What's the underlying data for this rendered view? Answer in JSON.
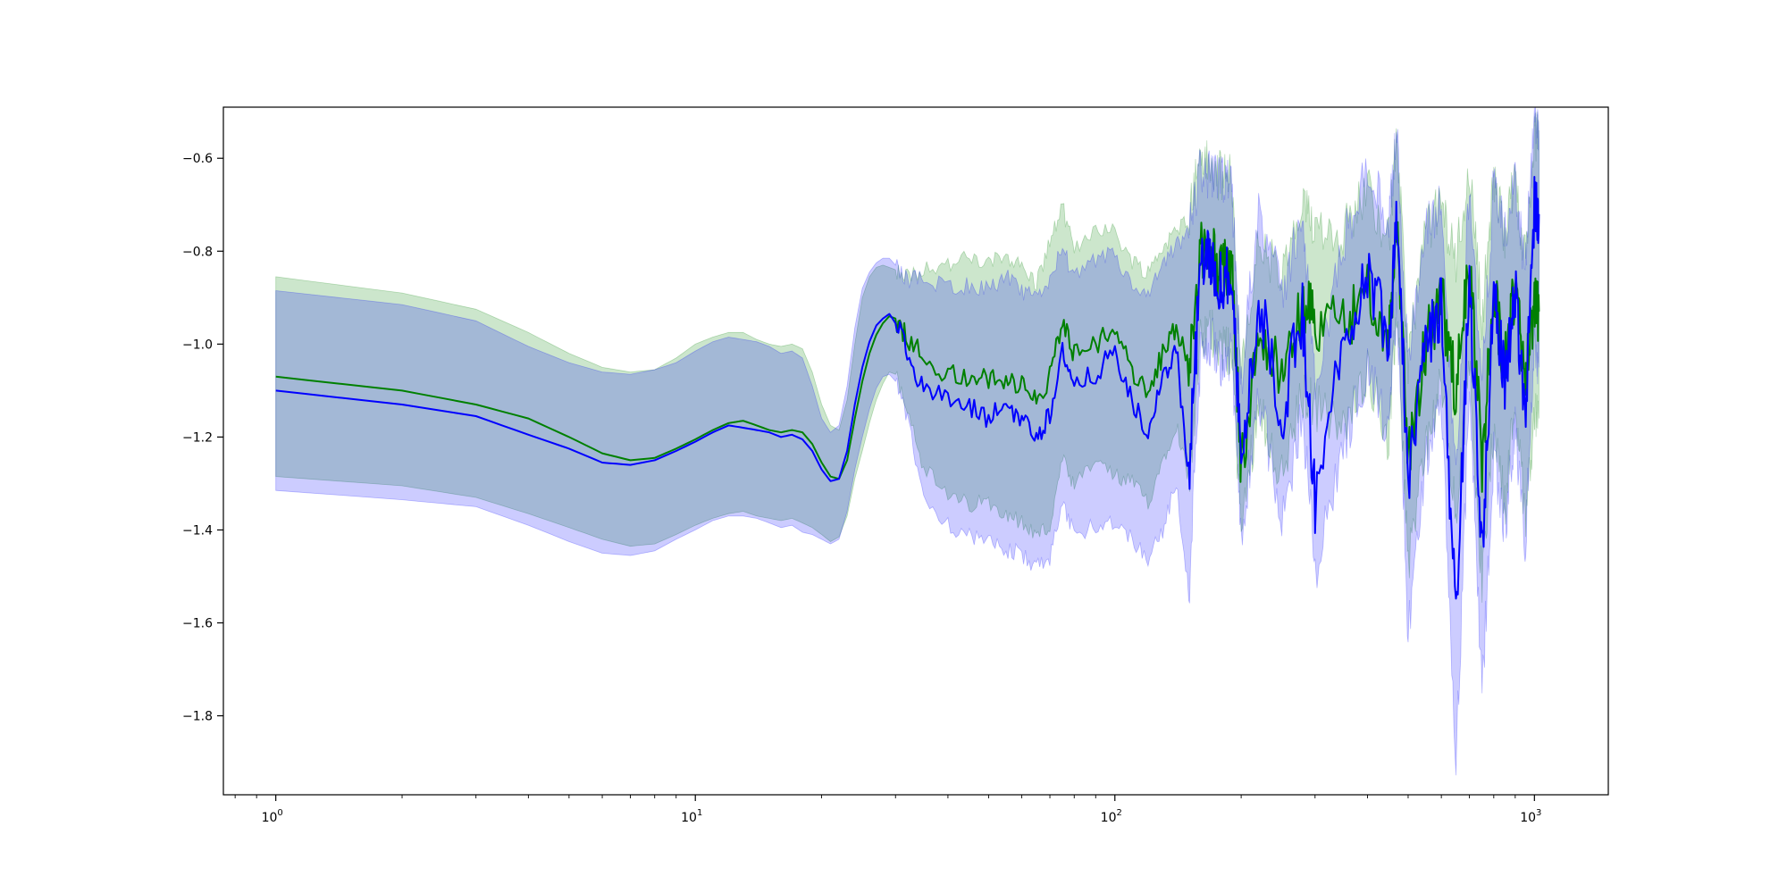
{
  "chart_data": {
    "type": "line",
    "title": "",
    "xlabel": "",
    "ylabel": "",
    "xscale": "log",
    "xlim": [
      0.75,
      1500
    ],
    "ylim": [
      -1.97,
      -0.49
    ],
    "grid": false,
    "x_ticks": [
      {
        "value": 1,
        "base": "10",
        "exp": "0"
      },
      {
        "value": 10,
        "base": "10",
        "exp": "1"
      },
      {
        "value": 100,
        "base": "10",
        "exp": "2"
      },
      {
        "value": 1000,
        "base": "10",
        "exp": "3"
      }
    ],
    "y_ticks": [
      {
        "value": -0.6,
        "label": "−0.6"
      },
      {
        "value": -0.8,
        "label": "−0.8"
      },
      {
        "value": -1.0,
        "label": "−1.0"
      },
      {
        "value": -1.2,
        "label": "−1.2"
      },
      {
        "value": -1.4,
        "label": "−1.4"
      },
      {
        "value": -1.6,
        "label": "−1.6"
      },
      {
        "value": -1.8,
        "label": "−1.8"
      }
    ],
    "series": [
      {
        "color": "#008000",
        "band_color": "#008000",
        "band_opacity": 0.2,
        "points": [
          [
            1,
            -1.07,
            -0.855,
            -1.285
          ],
          [
            2,
            -1.1,
            -0.89,
            -1.305
          ],
          [
            3,
            -1.13,
            -0.925,
            -1.33
          ],
          [
            4,
            -1.16,
            -0.975,
            -1.365
          ],
          [
            5,
            -1.2,
            -1.02,
            -1.395
          ],
          [
            6,
            -1.235,
            -1.05,
            -1.42
          ],
          [
            7,
            -1.25,
            -1.06,
            -1.435
          ],
          [
            8,
            -1.245,
            -1.055,
            -1.43
          ],
          [
            9,
            -1.225,
            -1.03,
            -1.41
          ],
          [
            10,
            -1.205,
            -1.0,
            -1.39
          ],
          [
            11,
            -1.185,
            -0.985,
            -1.375
          ],
          [
            12,
            -1.17,
            -0.975,
            -1.365
          ],
          [
            13,
            -1.165,
            -0.975,
            -1.36
          ],
          [
            14,
            -1.175,
            -0.99,
            -1.37
          ],
          [
            15,
            -1.185,
            -1.0,
            -1.375
          ],
          [
            16,
            -1.19,
            -1.005,
            -1.38
          ],
          [
            17,
            -1.185,
            -1.0,
            -1.375
          ],
          [
            18,
            -1.19,
            -1.01,
            -1.385
          ],
          [
            19,
            -1.215,
            -1.06,
            -1.395
          ],
          [
            20,
            -1.255,
            -1.13,
            -1.41
          ],
          [
            21,
            -1.285,
            -1.175,
            -1.425
          ],
          [
            22,
            -1.29,
            -1.185,
            -1.415
          ],
          [
            23,
            -1.25,
            -1.12,
            -1.37
          ],
          [
            24,
            -1.16,
            -1.0,
            -1.29
          ],
          [
            25,
            -1.08,
            -0.9,
            -1.23
          ],
          [
            26,
            -1.02,
            -0.855,
            -1.17
          ],
          [
            27,
            -0.98,
            -0.835,
            -1.12
          ],
          [
            28,
            -0.955,
            -0.83,
            -1.085
          ],
          [
            29,
            -0.94,
            -0.835,
            -1.06
          ],
          [
            30,
            -0.945,
            -0.84,
            -1.065
          ],
          [
            32,
            -0.985,
            -0.855,
            -1.13
          ],
          [
            35,
            -1.03,
            -0.835,
            -1.265
          ],
          [
            40,
            -1.065,
            -0.83,
            -1.33
          ],
          [
            45,
            -1.07,
            -0.815,
            -1.345
          ],
          [
            50,
            -1.08,
            -0.83,
            -1.34
          ],
          [
            55,
            -1.07,
            -0.805,
            -1.36
          ],
          [
            60,
            -1.09,
            -0.835,
            -1.385
          ],
          [
            65,
            -1.115,
            -0.87,
            -1.41
          ],
          [
            70,
            -1.07,
            -0.78,
            -1.395
          ],
          [
            75,
            -0.95,
            -0.705,
            -1.25
          ],
          [
            80,
            -1.02,
            -0.8,
            -1.31
          ],
          [
            90,
            -1.0,
            -0.745,
            -1.25
          ],
          [
            100,
            -0.97,
            -0.76,
            -1.285
          ],
          [
            110,
            -1.06,
            -0.82,
            -1.3
          ],
          [
            120,
            -1.11,
            -0.845,
            -1.34
          ],
          [
            130,
            -1.02,
            -0.79,
            -1.25
          ],
          [
            140,
            -0.96,
            -0.76,
            -1.17
          ],
          [
            150,
            -1.04,
            -0.72,
            -1.29
          ],
          [
            160,
            -0.8,
            -0.59,
            -1.0
          ],
          [
            170,
            -0.81,
            -0.63,
            -0.97
          ],
          [
            180,
            -0.85,
            -0.64,
            -1.01
          ],
          [
            190,
            -0.83,
            -0.64,
            -1.02
          ],
          [
            200,
            -1.26,
            -1.08,
            -1.4
          ],
          [
            220,
            -0.96,
            -0.78,
            -1.12
          ],
          [
            250,
            -1.08,
            -0.86,
            -1.29
          ],
          [
            280,
            -0.92,
            -0.71,
            -1.11
          ],
          [
            300,
            -0.95,
            -0.74,
            -1.13
          ],
          [
            350,
            -0.97,
            -0.76,
            -1.19
          ],
          [
            400,
            -0.86,
            -0.66,
            -1.05
          ],
          [
            450,
            -1.0,
            -0.78,
            -1.21
          ],
          [
            470,
            -0.72,
            -0.54,
            -0.92
          ],
          [
            500,
            -1.24,
            -1.03,
            -1.47
          ],
          [
            550,
            -1.0,
            -0.76,
            -1.22
          ],
          [
            600,
            -0.9,
            -0.7,
            -1.09
          ],
          [
            650,
            -1.1,
            -0.82,
            -1.38
          ],
          [
            700,
            -0.83,
            -0.62,
            -1.04
          ],
          [
            750,
            -1.25,
            -0.94,
            -1.52
          ],
          [
            800,
            -0.88,
            -0.65,
            -1.17
          ],
          [
            850,
            -1.05,
            -0.76,
            -1.35
          ],
          [
            900,
            -0.87,
            -0.64,
            -1.11
          ],
          [
            950,
            -1.1,
            -0.82,
            -1.38
          ],
          [
            1000,
            -0.9,
            -0.56,
            -1.15
          ],
          [
            1025,
            -0.93,
            -0.54,
            -1.16
          ]
        ]
      },
      {
        "color": "#0000ff",
        "band_color": "#0000ff",
        "band_opacity": 0.2,
        "points": [
          [
            1,
            -1.1,
            -0.885,
            -1.315
          ],
          [
            2,
            -1.13,
            -0.915,
            -1.335
          ],
          [
            3,
            -1.155,
            -0.95,
            -1.35
          ],
          [
            4,
            -1.195,
            -1.005,
            -1.39
          ],
          [
            5,
            -1.225,
            -1.04,
            -1.425
          ],
          [
            6,
            -1.255,
            -1.06,
            -1.45
          ],
          [
            7,
            -1.26,
            -1.065,
            -1.455
          ],
          [
            8,
            -1.25,
            -1.055,
            -1.445
          ],
          [
            9,
            -1.23,
            -1.04,
            -1.42
          ],
          [
            10,
            -1.21,
            -1.015,
            -1.4
          ],
          [
            11,
            -1.19,
            -0.995,
            -1.38
          ],
          [
            12,
            -1.175,
            -0.985,
            -1.37
          ],
          [
            13,
            -1.18,
            -0.99,
            -1.37
          ],
          [
            14,
            -1.185,
            -0.995,
            -1.375
          ],
          [
            15,
            -1.19,
            -1.005,
            -1.385
          ],
          [
            16,
            -1.2,
            -1.02,
            -1.395
          ],
          [
            17,
            -1.195,
            -1.015,
            -1.39
          ],
          [
            18,
            -1.205,
            -1.03,
            -1.405
          ],
          [
            19,
            -1.23,
            -1.09,
            -1.41
          ],
          [
            20,
            -1.27,
            -1.16,
            -1.42
          ],
          [
            21,
            -1.295,
            -1.19,
            -1.43
          ],
          [
            22,
            -1.29,
            -1.175,
            -1.42
          ],
          [
            23,
            -1.23,
            -1.09,
            -1.36
          ],
          [
            24,
            -1.13,
            -0.965,
            -1.27
          ],
          [
            25,
            -1.05,
            -0.88,
            -1.2
          ],
          [
            26,
            -0.995,
            -0.845,
            -1.14
          ],
          [
            27,
            -0.96,
            -0.825,
            -1.095
          ],
          [
            28,
            -0.945,
            -0.815,
            -1.07
          ],
          [
            29,
            -0.935,
            -0.815,
            -1.065
          ],
          [
            30,
            -0.955,
            -0.83,
            -1.08
          ],
          [
            32,
            -1.01,
            -0.86,
            -1.16
          ],
          [
            35,
            -1.1,
            -0.86,
            -1.33
          ],
          [
            40,
            -1.12,
            -0.875,
            -1.385
          ],
          [
            45,
            -1.14,
            -0.875,
            -1.415
          ],
          [
            50,
            -1.16,
            -0.88,
            -1.43
          ],
          [
            55,
            -1.13,
            -0.855,
            -1.44
          ],
          [
            60,
            -1.16,
            -0.89,
            -1.455
          ],
          [
            65,
            -1.2,
            -0.9,
            -1.48
          ],
          [
            70,
            -1.15,
            -0.86,
            -1.46
          ],
          [
            75,
            -1.01,
            -0.79,
            -1.35
          ],
          [
            80,
            -1.1,
            -0.86,
            -1.41
          ],
          [
            90,
            -1.06,
            -0.82,
            -1.39
          ],
          [
            100,
            -1.02,
            -0.805,
            -1.38
          ],
          [
            110,
            -1.13,
            -0.88,
            -1.42
          ],
          [
            120,
            -1.19,
            -0.9,
            -1.46
          ],
          [
            130,
            -1.08,
            -0.83,
            -1.4
          ],
          [
            140,
            -1.0,
            -0.79,
            -1.3
          ],
          [
            150,
            -1.3,
            -0.76,
            -1.54
          ],
          [
            160,
            -0.83,
            -0.62,
            -1.03
          ],
          [
            170,
            -0.82,
            -0.64,
            -0.99
          ],
          [
            180,
            -0.87,
            -0.65,
            -1.04
          ],
          [
            190,
            -0.84,
            -0.66,
            -1.03
          ],
          [
            200,
            -1.27,
            -1.08,
            -1.41
          ],
          [
            220,
            -0.9,
            -0.7,
            -1.1
          ],
          [
            250,
            -1.15,
            -0.9,
            -1.4
          ],
          [
            280,
            -0.93,
            -0.71,
            -1.14
          ],
          [
            300,
            -1.34,
            -1.1,
            -1.49
          ],
          [
            350,
            -1.0,
            -0.78,
            -1.22
          ],
          [
            400,
            -0.84,
            -0.62,
            -1.05
          ],
          [
            450,
            -0.98,
            -0.74,
            -1.2
          ],
          [
            470,
            -0.7,
            -0.54,
            -0.9
          ],
          [
            500,
            -1.3,
            -1.05,
            -1.63
          ],
          [
            550,
            -1.01,
            -0.76,
            -1.25
          ],
          [
            600,
            -0.92,
            -0.7,
            -1.14
          ],
          [
            650,
            -1.6,
            -1.3,
            -1.91
          ],
          [
            700,
            -0.86,
            -0.64,
            -1.1
          ],
          [
            750,
            -1.45,
            -1.1,
            -1.76
          ],
          [
            800,
            -0.9,
            -0.65,
            -1.23
          ],
          [
            850,
            -1.08,
            -0.77,
            -1.4
          ],
          [
            900,
            -0.88,
            -0.65,
            -1.18
          ],
          [
            950,
            -1.15,
            -0.84,
            -1.44
          ],
          [
            1000,
            -0.7,
            -0.52,
            -1.0
          ],
          [
            1025,
            -0.72,
            -0.56,
            -1.05
          ]
        ]
      }
    ]
  }
}
